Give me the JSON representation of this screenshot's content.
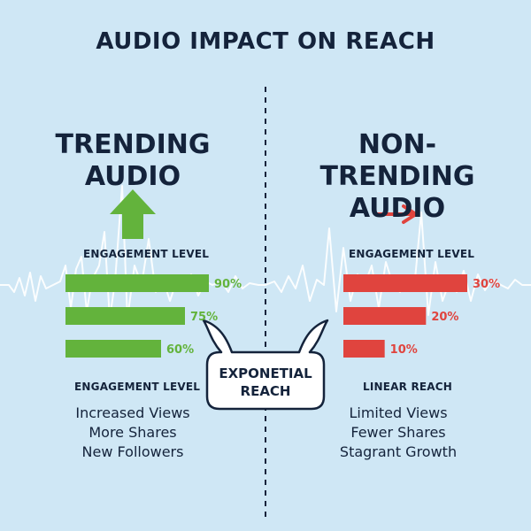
{
  "title": "AUDIO IMPACT ON REACH",
  "colors": {
    "background": "#cfe7f5",
    "trending": "#63b33c",
    "non_trending": "#e0443e",
    "text": "#14233b",
    "wave": "#ffffff"
  },
  "chart_data": [
    {
      "type": "bar",
      "orientation": "horizontal",
      "title_lines": [
        "TRENDING",
        "AUDIO"
      ],
      "trend_icon": "up-arrow-icon",
      "top_label": "ENGAGEMENT LEVEL",
      "categories": [
        "",
        "",
        ""
      ],
      "values": [
        90,
        75,
        60
      ],
      "value_labels": [
        "90%",
        "75%",
        "60%"
      ],
      "bottom_label": "ENGAGEMENT LEVEL",
      "outcomes": [
        "Increased Views",
        "More Shares",
        "New Followers"
      ]
    },
    {
      "type": "bar",
      "orientation": "horizontal",
      "title_lines": [
        "NON-TRENDING",
        "AUDIO"
      ],
      "trend_icon": "right-arrow-icon",
      "top_label": "ENGAGEMENT LEVEL",
      "categories": [
        "",
        "",
        ""
      ],
      "values": [
        30,
        20,
        10
      ],
      "value_labels": [
        "30%",
        "20%",
        "10%"
      ],
      "bottom_label": "LINEAR REACH",
      "outcomes": [
        "Limited Views",
        "Fewer Shares",
        "Stagrant Growth"
      ]
    }
  ],
  "center_callout": {
    "lines": [
      "EXPONETIAL",
      "REACH"
    ]
  }
}
